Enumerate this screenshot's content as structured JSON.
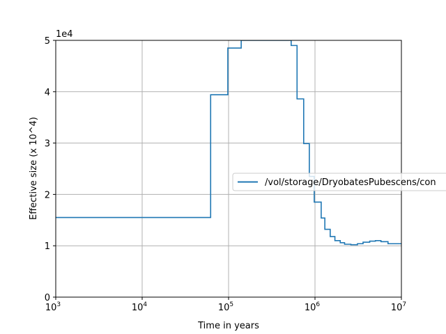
{
  "chart_data": {
    "type": "line",
    "xlabel": "Time in years",
    "ylabel": "Effective size (x 10^4)",
    "y_offset_label": "1e4",
    "x_scale": "log",
    "xlim": [
      1000,
      10000000
    ],
    "ylim": [
      0,
      5
    ],
    "x_ticks": [
      {
        "value": 1000,
        "base": "10",
        "exp": "3"
      },
      {
        "value": 10000,
        "base": "10",
        "exp": "4"
      },
      {
        "value": 100000,
        "base": "10",
        "exp": "5"
      },
      {
        "value": 1000000,
        "base": "10",
        "exp": "6"
      },
      {
        "value": 10000000,
        "base": "10",
        "exp": "7"
      }
    ],
    "y_ticks": [
      0,
      1,
      2,
      3,
      4,
      5
    ],
    "grid": true,
    "legend_position": "center-right",
    "series": [
      {
        "name": "/vol/storage/DryobatesPubescens/con",
        "color": "#1f77b4",
        "step": "post",
        "x": [
          1000,
          62000,
          98000,
          140000,
          530000,
          620000,
          740000,
          860000,
          980000,
          1180000,
          1300000,
          1500000,
          1700000,
          1960000,
          2200000,
          2600000,
          3100000,
          3600000,
          4300000,
          5000000,
          5800000,
          7000000,
          10000000
        ],
        "y": [
          1.55,
          3.94,
          4.85,
          5.0,
          4.9,
          3.86,
          2.99,
          2.35,
          1.85,
          1.54,
          1.32,
          1.18,
          1.1,
          1.06,
          1.03,
          1.02,
          1.04,
          1.07,
          1.09,
          1.1,
          1.08,
          1.04,
          1.04
        ]
      }
    ]
  }
}
